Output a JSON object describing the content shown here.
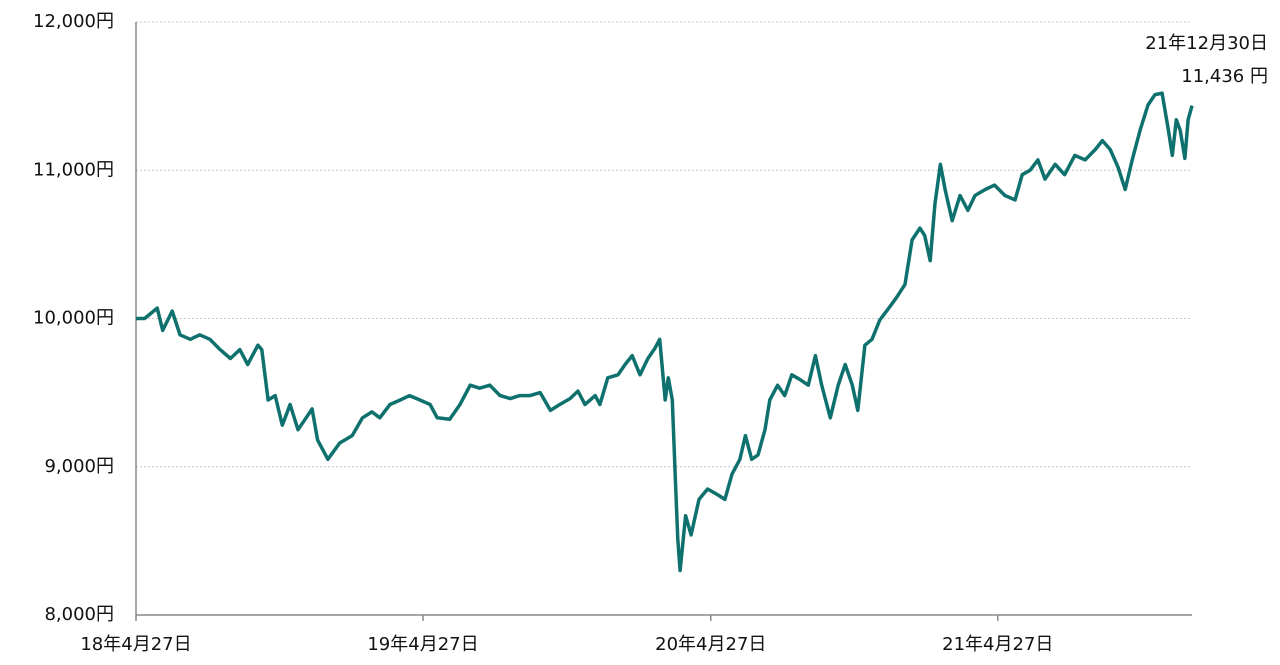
{
  "chart_data": {
    "type": "line",
    "x": [
      "2018-04-27",
      "2018-05-08",
      "2018-05-24",
      "2018-05-31",
      "2018-06-12",
      "2018-06-22",
      "2018-07-05",
      "2018-07-17",
      "2018-07-30",
      "2018-08-12",
      "2018-08-25",
      "2018-09-06",
      "2018-09-16",
      "2018-09-29",
      "2018-10-04",
      "2018-10-12",
      "2018-10-21",
      "2018-10-30",
      "2018-11-09",
      "2018-11-19",
      "2018-11-28",
      "2018-12-07",
      "2018-12-14",
      "2018-12-27",
      "2019-01-11",
      "2019-01-27",
      "2019-02-09",
      "2019-02-21",
      "2019-03-03",
      "2019-03-16",
      "2019-03-29",
      "2019-04-10",
      "2019-04-23",
      "2019-05-06",
      "2019-05-15",
      "2019-05-31",
      "2019-06-13",
      "2019-06-26",
      "2019-07-08",
      "2019-07-21",
      "2019-08-03",
      "2019-08-16",
      "2019-08-28",
      "2019-09-10",
      "2019-09-23",
      "2019-10-06",
      "2019-10-18",
      "2019-10-31",
      "2019-11-10",
      "2019-11-19",
      "2019-12-02",
      "2019-12-08",
      "2019-12-18",
      "2019-12-31",
      "2020-01-09",
      "2020-01-18",
      "2020-01-28",
      "2020-02-07",
      "2020-02-16",
      "2020-02-22",
      "2020-02-29",
      "2020-03-04",
      "2020-03-09",
      "2020-03-13",
      "2020-03-16",
      "2020-03-19",
      "2020-03-26",
      "2020-04-02",
      "2020-04-12",
      "2020-04-23",
      "2020-05-06",
      "2020-05-15",
      "2020-05-24",
      "2020-06-03",
      "2020-06-10",
      "2020-06-18",
      "2020-06-26",
      "2020-07-05",
      "2020-07-11",
      "2020-07-21",
      "2020-07-30",
      "2020-08-08",
      "2020-08-18",
      "2020-08-29",
      "2020-09-07",
      "2020-09-15",
      "2020-09-26",
      "2020-10-06",
      "2020-10-15",
      "2020-10-24",
      "2020-10-31",
      "2020-11-09",
      "2020-11-18",
      "2020-11-28",
      "2020-12-08",
      "2020-12-19",
      "2020-12-30",
      "2021-01-08",
      "2021-01-18",
      "2021-01-24",
      "2021-01-31",
      "2021-02-06",
      "2021-02-13",
      "2021-02-19",
      "2021-02-28",
      "2021-03-10",
      "2021-03-20",
      "2021-03-29",
      "2021-04-11",
      "2021-04-23",
      "2021-05-06",
      "2021-05-19",
      "2021-05-28",
      "2021-06-07",
      "2021-06-17",
      "2021-06-26",
      "2021-07-09",
      "2021-07-21",
      "2021-08-03",
      "2021-08-16",
      "2021-08-29",
      "2021-09-07",
      "2021-09-17",
      "2021-09-27",
      "2021-10-06",
      "2021-10-15",
      "2021-10-25",
      "2021-11-04",
      "2021-11-13",
      "2021-11-22",
      "2021-11-30",
      "2021-12-05",
      "2021-12-10",
      "2021-12-15",
      "2021-12-21",
      "2021-12-25",
      "2021-12-30"
    ],
    "series": [
      {
        "color": "#0f716d",
        "values": [
          10000,
          10000,
          10070,
          9920,
          10050,
          9890,
          9860,
          9890,
          9860,
          9790,
          9730,
          9790,
          9690,
          9820,
          9790,
          9450,
          9480,
          9280,
          9420,
          9250,
          9320,
          9390,
          9180,
          9050,
          9160,
          9210,
          9330,
          9370,
          9330,
          9420,
          9450,
          9480,
          9450,
          9420,
          9330,
          9320,
          9420,
          9550,
          9530,
          9550,
          9480,
          9460,
          9480,
          9480,
          9500,
          9380,
          9420,
          9460,
          9510,
          9420,
          9480,
          9420,
          9600,
          9620,
          9690,
          9750,
          9620,
          9730,
          9800,
          9860,
          9450,
          9600,
          9450,
          8910,
          8510,
          8300,
          8670,
          8540,
          8780,
          8850,
          8810,
          8780,
          8950,
          9050,
          9210,
          9050,
          9080,
          9250,
          9450,
          9550,
          9480,
          9620,
          9590,
          9550,
          9750,
          9550,
          9330,
          9550,
          9690,
          9550,
          9380,
          9820,
          9860,
          9990,
          10060,
          10140,
          10230,
          10530,
          10610,
          10560,
          10390,
          10770,
          11040,
          10870,
          10660,
          10830,
          10730,
          10830,
          10870,
          10900,
          10830,
          10800,
          10970,
          11000,
          11070,
          10940,
          11040,
          10970,
          11100,
          11070,
          11140,
          11200,
          11140,
          11020,
          10870,
          11070,
          11270,
          11440,
          11510,
          11520,
          11270,
          11100,
          11340,
          11270,
          11080,
          11340,
          11436
        ]
      }
    ],
    "xlim": [
      "2018-04-27",
      "2021-12-30"
    ],
    "xticks": [
      {
        "value": "2018-04-27",
        "label": "18年4月27日"
      },
      {
        "value": "2019-04-27",
        "label": "19年4月27日"
      },
      {
        "value": "2020-04-27",
        "label": "20年4月27日"
      },
      {
        "value": "2021-04-27",
        "label": "21年4月27日"
      }
    ],
    "ylim": [
      8000,
      12000
    ],
    "yticks": [
      {
        "value": 8000,
        "label": "8,000円"
      },
      {
        "value": 9000,
        "label": "9,000円"
      },
      {
        "value": 10000,
        "label": "10,000円"
      },
      {
        "value": 11000,
        "label": "11,000円"
      },
      {
        "value": 12000,
        "label": "12,000円"
      }
    ],
    "grid": true,
    "last_point": {
      "date_label": "21年12月30日",
      "value": 11436,
      "value_label": "11,436 円"
    }
  }
}
